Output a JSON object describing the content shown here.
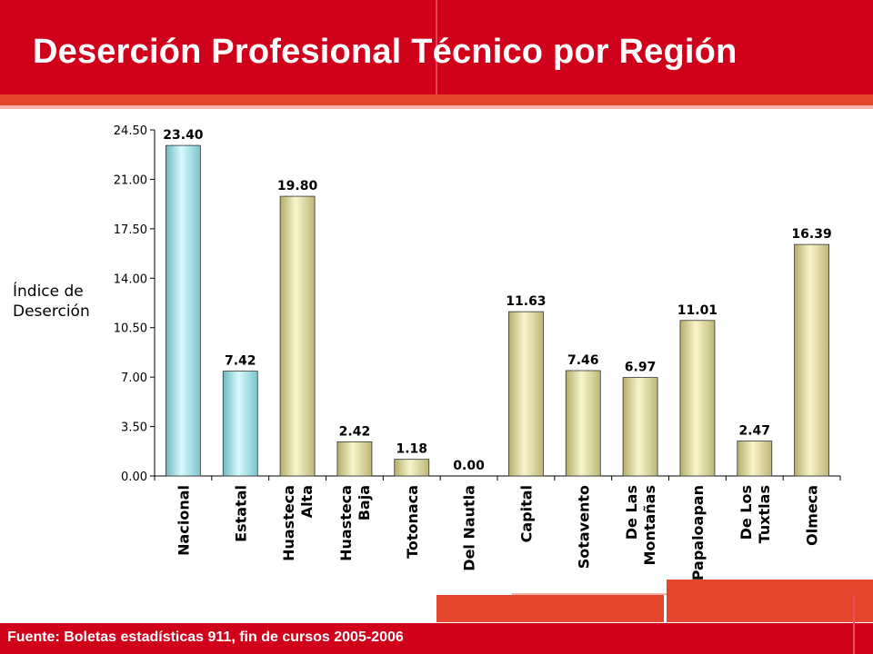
{
  "slide": {
    "title": "Deserción Profesional Técnico por Región",
    "source": "Fuente: Boletas estadísticas 911, fin de cursos 2005-2006"
  },
  "colors": {
    "header_red": "#d0021b",
    "band_orange": "#e4452c",
    "bar_blue": "#a8e6ea",
    "bar_yellow": "#e6e2a6"
  },
  "chart_data": {
    "type": "bar",
    "ylabel_lines": [
      "Índice de",
      "Deserción"
    ],
    "ylim": [
      0,
      24.5
    ],
    "yticks": [
      "0.00",
      "3.50",
      "7.00",
      "10.50",
      "14.00",
      "17.50",
      "21.00",
      "24.50"
    ],
    "grid": false,
    "categories": [
      {
        "lines": [
          "Nacional"
        ],
        "value": 23.4,
        "label": "23.40",
        "color": "blue"
      },
      {
        "lines": [
          "Estatal"
        ],
        "value": 7.42,
        "label": "7.42",
        "color": "blue"
      },
      {
        "lines": [
          "Huasteca",
          "Alta"
        ],
        "value": 19.8,
        "label": "19.80",
        "color": "yellow"
      },
      {
        "lines": [
          "Huasteca",
          "Baja"
        ],
        "value": 2.42,
        "label": "2.42",
        "color": "yellow"
      },
      {
        "lines": [
          "Totonaca"
        ],
        "value": 1.18,
        "label": "1.18",
        "color": "yellow"
      },
      {
        "lines": [
          "Del Nautla"
        ],
        "value": 0.0,
        "label": "0.00",
        "color": "yellow"
      },
      {
        "lines": [
          "Capital"
        ],
        "value": 11.63,
        "label": "11.63",
        "color": "yellow"
      },
      {
        "lines": [
          "Sotavento"
        ],
        "value": 7.46,
        "label": "7.46",
        "color": "yellow"
      },
      {
        "lines": [
          "De Las",
          "Montañas"
        ],
        "value": 6.97,
        "label": "6.97",
        "color": "yellow"
      },
      {
        "lines": [
          "Papaloapan"
        ],
        "value": 11.01,
        "label": "11.01",
        "color": "yellow"
      },
      {
        "lines": [
          "De Los",
          "Tuxtlas"
        ],
        "value": 2.47,
        "label": "2.47",
        "color": "yellow"
      },
      {
        "lines": [
          "Olmeca"
        ],
        "value": 16.39,
        "label": "16.39",
        "color": "yellow"
      }
    ]
  }
}
